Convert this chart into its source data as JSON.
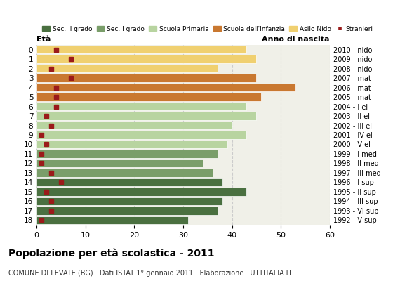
{
  "ages": [
    18,
    17,
    16,
    15,
    14,
    13,
    12,
    11,
    10,
    9,
    8,
    7,
    6,
    5,
    4,
    3,
    2,
    1,
    0
  ],
  "bar_values": [
    31,
    37,
    38,
    43,
    38,
    36,
    34,
    37,
    39,
    43,
    40,
    45,
    43,
    46,
    53,
    45,
    37,
    45,
    43
  ],
  "stranieri": [
    1,
    3,
    3,
    2,
    5,
    3,
    1,
    1,
    2,
    1,
    3,
    2,
    4,
    4,
    4,
    7,
    3,
    7,
    4
  ],
  "bar_colors": [
    "#4a7040",
    "#4a7040",
    "#4a7040",
    "#4a7040",
    "#4a7040",
    "#7a9e6a",
    "#7a9e6a",
    "#7a9e6a",
    "#b8d4a0",
    "#b8d4a0",
    "#b8d4a0",
    "#b8d4a0",
    "#b8d4a0",
    "#c97830",
    "#c97830",
    "#c97830",
    "#f0d070",
    "#f0d070",
    "#f0d070"
  ],
  "anno_nascita": [
    "1992 - V sup",
    "1993 - VI sup",
    "1994 - III sup",
    "1995 - II sup",
    "1996 - I sup",
    "1997 - III med",
    "1998 - II med",
    "1999 - I med",
    "2000 - V el",
    "2001 - IV el",
    "2002 - III el",
    "2003 - II el",
    "2004 - I el",
    "2005 - mat",
    "2006 - mat",
    "2007 - mat",
    "2008 - nido",
    "2009 - nido",
    "2010 - nido"
  ],
  "legend_labels": [
    "Sec. II grado",
    "Sec. I grado",
    "Scuola Primaria",
    "Scuola dell'Infanzia",
    "Asilo Nido",
    "Stranieri"
  ],
  "legend_colors": [
    "#4a7040",
    "#7a9e6a",
    "#b8d4a0",
    "#c97830",
    "#f0d070",
    "#9b1a1a"
  ],
  "title": "Popolazione per età scolastica - 2011",
  "subtitle": "COMUNE DI LEVATE (BG) · Dati ISTAT 1° gennaio 2011 · Elaborazione TUTTITALIA.IT",
  "ylabel_eta": "Età",
  "ylabel_anno": "Anno di nascita",
  "xlim": [
    0,
    60
  ],
  "xticks": [
    0,
    10,
    20,
    30,
    40,
    50,
    60
  ],
  "stranieri_color": "#9b1a1a",
  "background_color": "#ffffff",
  "plot_bg_color": "#f0f0e8",
  "grid_color": "#cccccc"
}
